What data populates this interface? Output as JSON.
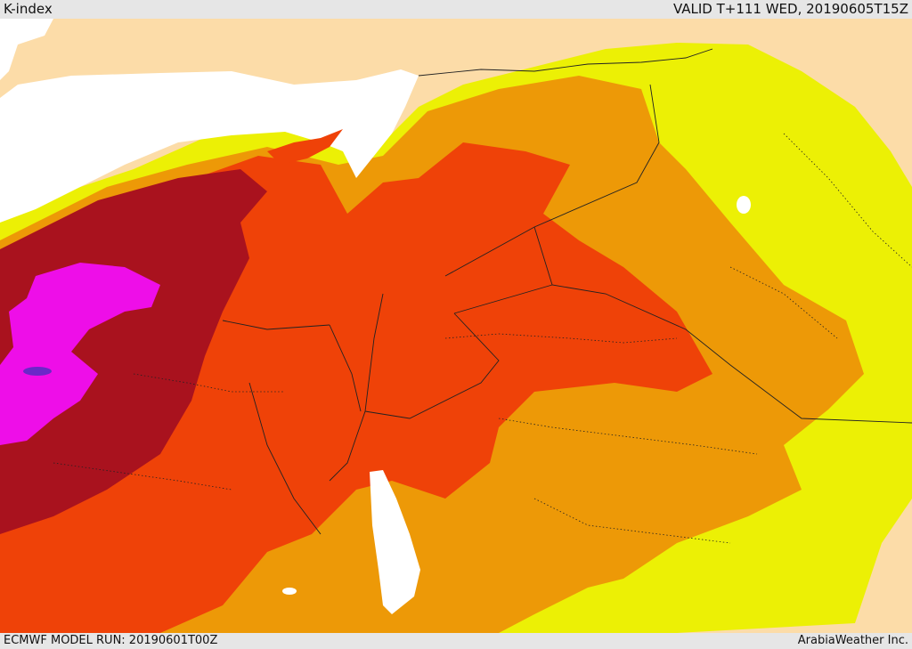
{
  "header": {
    "title": "K-index",
    "valid": "VALID T+111 WED, 20190605T15Z"
  },
  "footer": {
    "model_run": "ECMWF MODEL RUN: 20190601T00Z",
    "credit": "ArabiaWeather Inc."
  },
  "colors": {
    "sea": "#ffffff",
    "beige": "#fcdca8",
    "yellow": "#ecf005",
    "light_orange": "#ed9907",
    "red_orange": "#ef4208",
    "dark_red": "#a9121e",
    "magenta": "#ee0ee8",
    "purple": "#6a28c8",
    "border": "#222222"
  }
}
